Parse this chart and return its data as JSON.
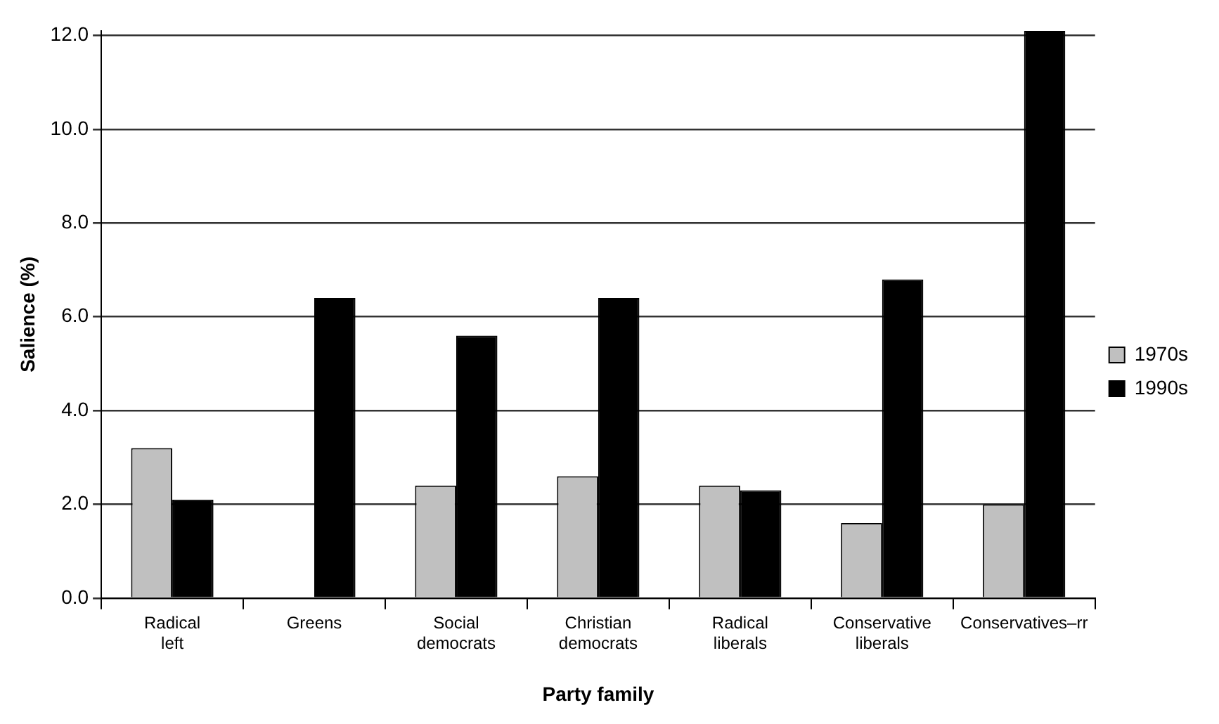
{
  "chart_data": {
    "type": "bar",
    "xlabel": "Party family",
    "ylabel": "Salience (%)",
    "categories": [
      "Radical left",
      "Greens",
      "Social democrats",
      "Christian democrats",
      "Radical liberals",
      "Conservative liberals",
      "Conservatives–rr"
    ],
    "series": [
      {
        "name": "1970s",
        "color": "#c0c0c0",
        "values": [
          3.2,
          null,
          2.4,
          2.6,
          2.4,
          1.6,
          2.0
        ]
      },
      {
        "name": "1990s",
        "color": "#000000",
        "values": [
          2.1,
          6.4,
          5.6,
          6.4,
          2.3,
          6.8,
          12.1
        ]
      }
    ],
    "ylim": [
      0,
      12.1
    ],
    "yticks": [
      {
        "value": 0,
        "label": "0.0"
      },
      {
        "value": 2,
        "label": "2.0"
      },
      {
        "value": 4,
        "label": "4.0"
      },
      {
        "value": 6,
        "label": "6.0"
      },
      {
        "value": 8,
        "label": "8.0"
      },
      {
        "value": 10,
        "label": "10.0"
      },
      {
        "value": 12,
        "label": "12.0"
      }
    ],
    "grid": "y",
    "legend": "right"
  }
}
